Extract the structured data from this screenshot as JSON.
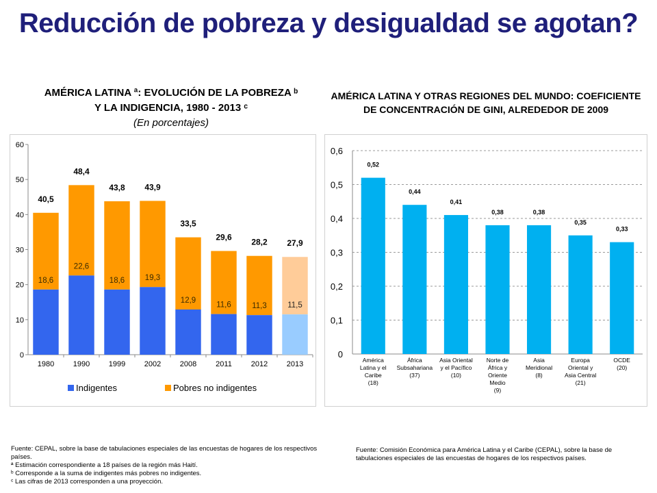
{
  "page": {
    "title": "Reducción de pobreza y desigualdad se agotan?"
  },
  "chart_data": [
    {
      "type": "bar",
      "stacked": true,
      "title_line1": "AMÉRICA LATINA ª: EVOLUCIÓN DE LA POBREZA ᵇ",
      "title_line2": "Y LA INDIGENCIA, 1980 - 2013 ᶜ",
      "subtitle": "(En porcentajes)",
      "categories": [
        "1980",
        "1990",
        "1999",
        "2002",
        "2008",
        "2011",
        "2012",
        "2013"
      ],
      "series": [
        {
          "name": "Indigentes",
          "values": [
            18.6,
            22.6,
            18.6,
            19.3,
            12.9,
            11.6,
            11.3,
            11.5
          ],
          "labels": [
            "18,6",
            "22,6",
            "18,6",
            "19,3",
            "12,9",
            "11,6",
            "11,3",
            "11,5"
          ],
          "color": "#3366ee",
          "projection_color": "#99ccff"
        },
        {
          "name": "Pobres no indigentes",
          "values": [
            21.9,
            25.8,
            25.2,
            24.6,
            20.6,
            18.0,
            16.9,
            16.4
          ],
          "color": "#ff9900",
          "projection_color": "#ffcc99"
        }
      ],
      "totals": [
        40.5,
        48.4,
        43.8,
        43.9,
        33.5,
        29.6,
        28.2,
        27.9
      ],
      "total_labels": [
        "40,5",
        "48,4",
        "43,8",
        "43,9",
        "33,5",
        "29,6",
        "28,2",
        "27,9"
      ],
      "projection_index": 7,
      "ylim": [
        0,
        60
      ],
      "yticks": [
        "0",
        "10",
        "20",
        "30",
        "40",
        "50",
        "60"
      ],
      "legend_placement": "bottom",
      "grid": false
    },
    {
      "type": "bar",
      "title_line1": "AMÉRICA LATINA Y OTRAS REGIONES DEL MUNDO: COEFICIENTE",
      "title_line2": "DE CONCENTRACIÓN DE GINI, ALREDEDOR DE 2009",
      "categories": [
        [
          "América",
          "Latina y el",
          "Caribe",
          "(18)"
        ],
        [
          "África",
          "Subsahariana",
          "(37)"
        ],
        [
          "Asia Oriental",
          "y el Pacífico",
          "(10)"
        ],
        [
          "Norte de",
          "África y",
          "Oriente",
          "Medio",
          "(9)"
        ],
        [
          "Asia",
          "Meridional",
          "(8)"
        ],
        [
          "Europa",
          "Oriental y",
          "Asia Central",
          "(21)"
        ],
        [
          "OCDE",
          "(20)"
        ]
      ],
      "values": [
        0.52,
        0.44,
        0.41,
        0.38,
        0.38,
        0.35,
        0.33
      ],
      "value_labels": [
        "0,52",
        "0,44",
        "0,41",
        "0,38",
        "0,38",
        "0,35",
        "0,33"
      ],
      "color": "#00b0f0",
      "ylim": [
        0,
        0.6
      ],
      "yticks": [
        "0",
        "0,1",
        "0,2",
        "0,3",
        "0,4",
        "0,5",
        "0,6"
      ],
      "grid": true
    }
  ],
  "sources": {
    "left": [
      "Fuente: CEPAL, sobre la base de tabulaciones especiales de las encuestas de hogares de los respectivos países.",
      "ª Estimación correspondiente a 18 países de la región más Haití.",
      "ᵇ Corresponde a la suma de indigentes más pobres no indigentes.",
      "ᶜ Las cifras de 2013 corresponden a una proyección."
    ],
    "right": "Fuente: Comisión Económica para América Latina y el Caribe (CEPAL), sobre la base de tabulaciones especiales de las encuestas de hogares de los respectivos países."
  }
}
